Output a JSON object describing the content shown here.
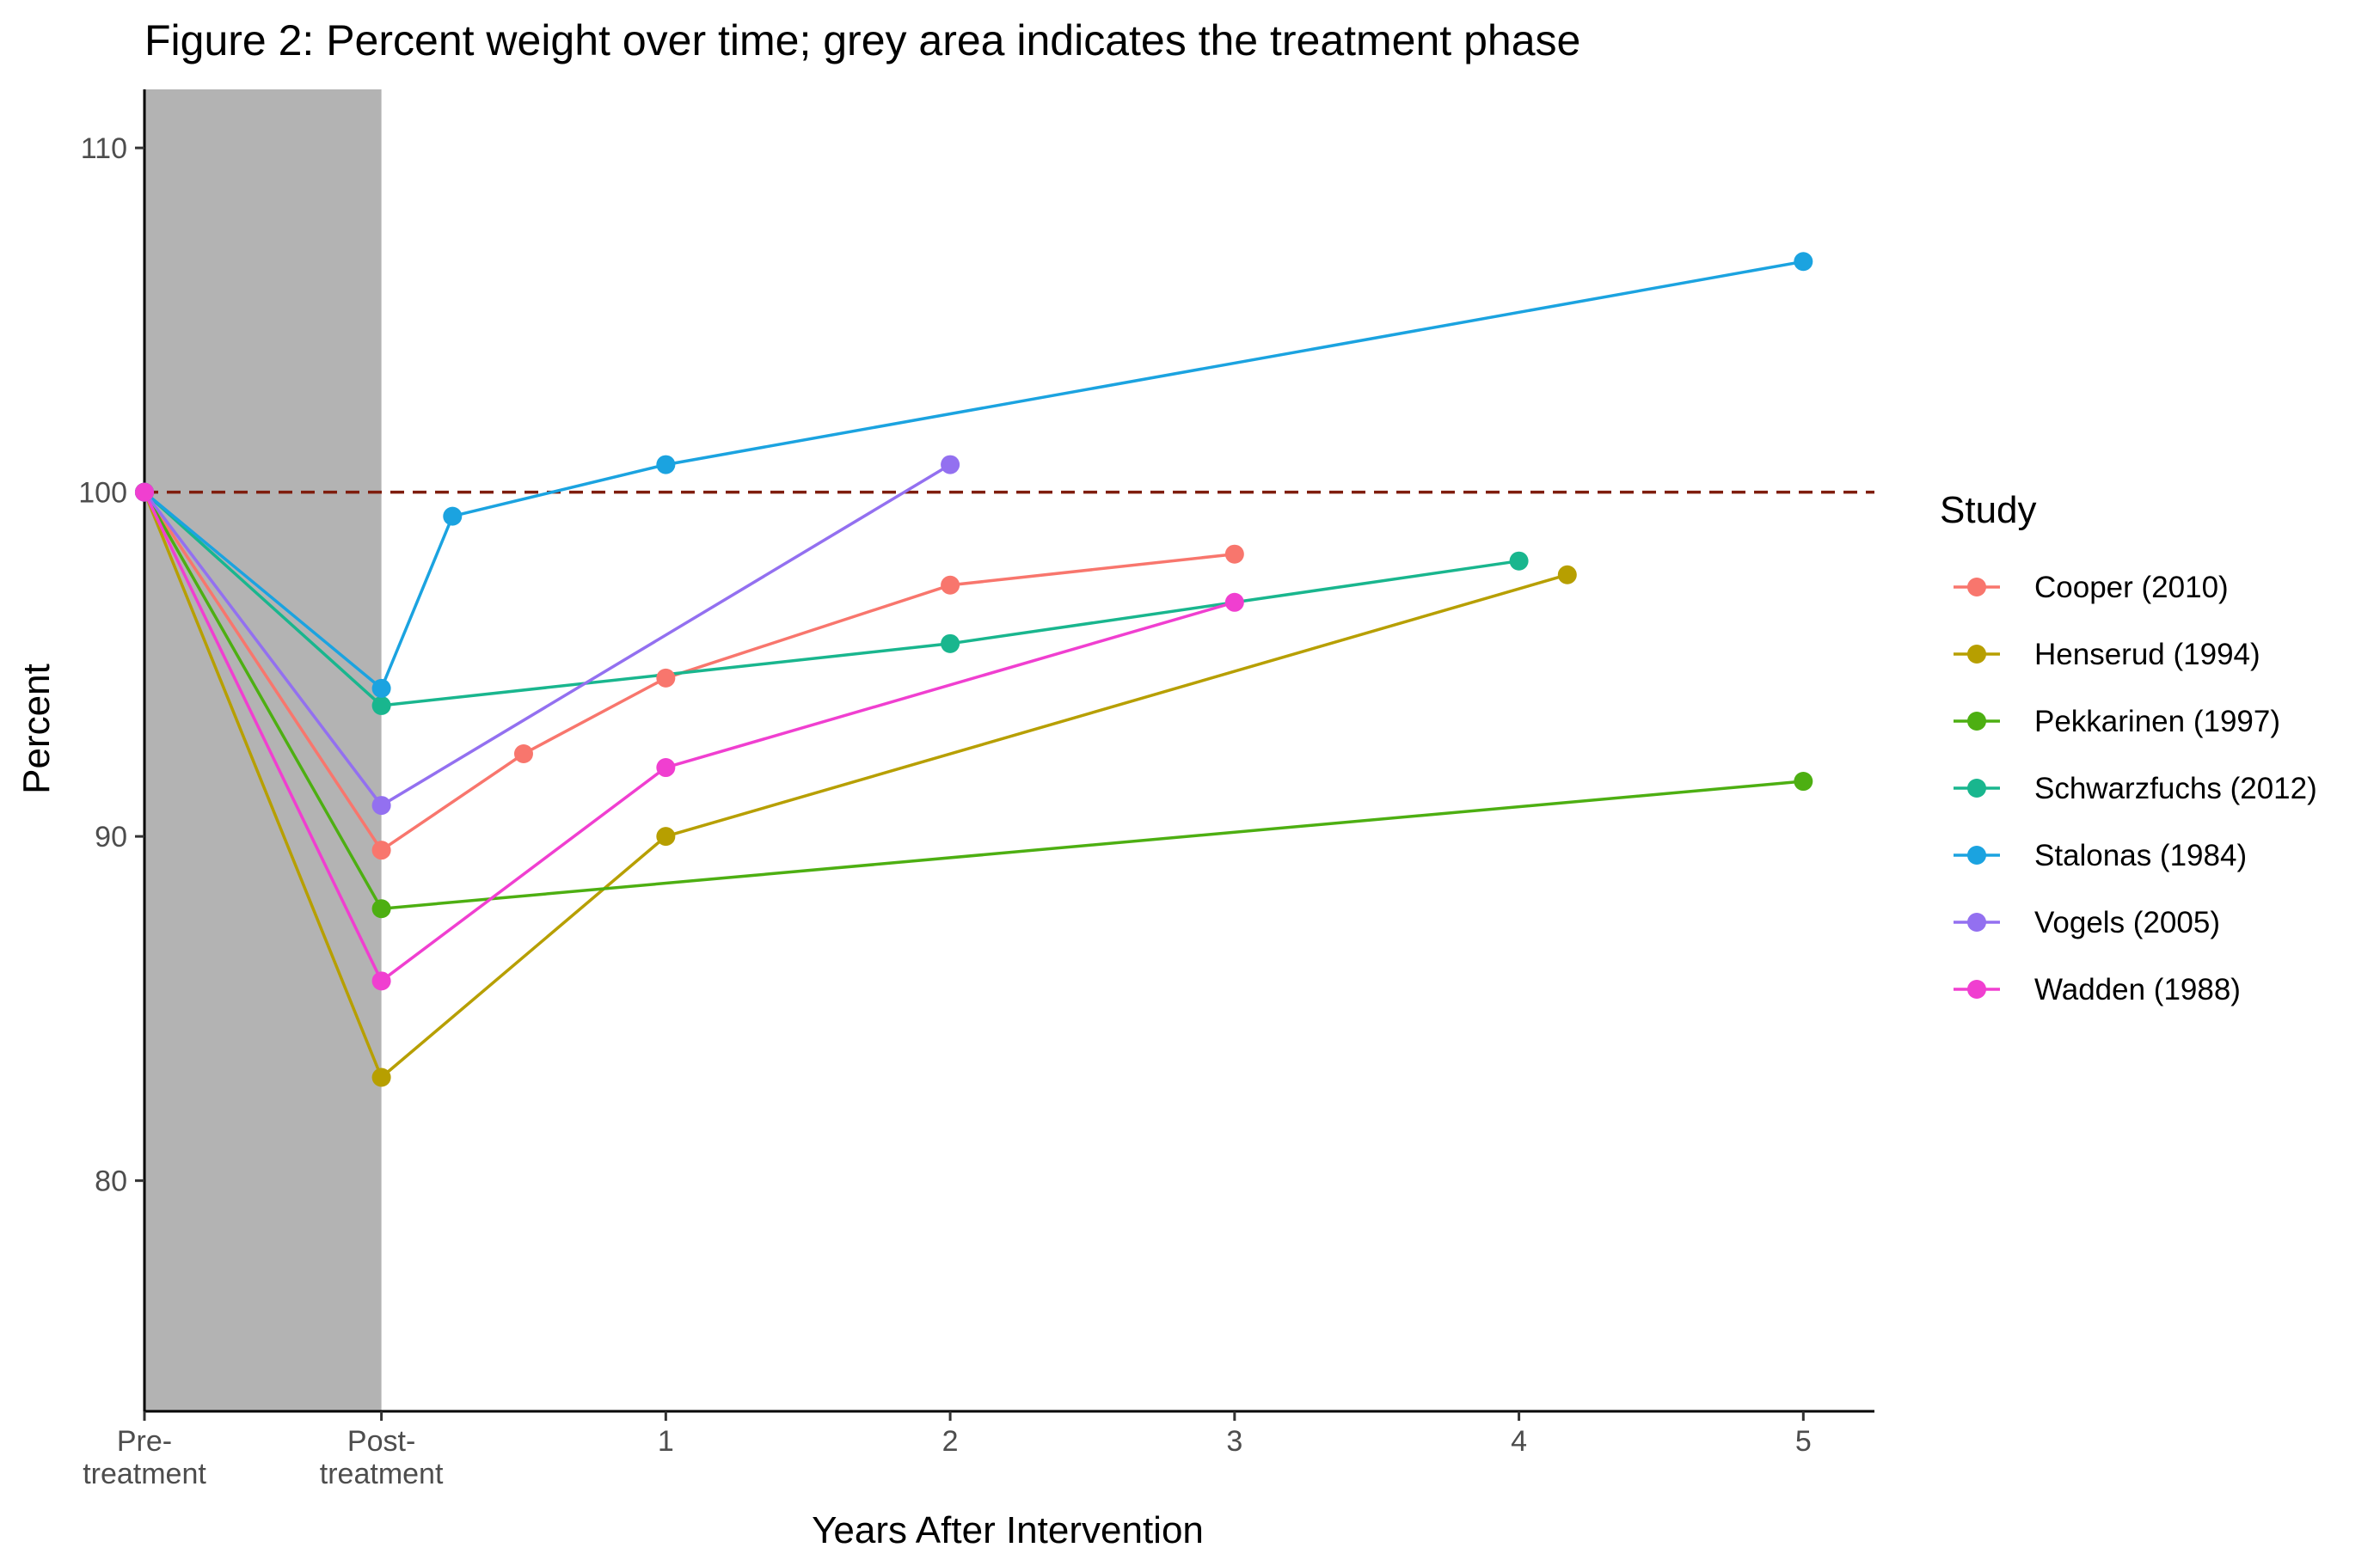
{
  "chart_data": {
    "type": "line",
    "title": "Figure 2: Percent weight over time; grey area indicates the treatment phase",
    "xlabel": "Years After Intervention",
    "ylabel": "Percent",
    "xlim": [
      -0.8333,
      5.25
    ],
    "ylim": [
      73.3,
      111.7
    ],
    "x_ticks": [
      {
        "value": -0.8333,
        "lines": [
          "Pre-",
          "treatment"
        ]
      },
      {
        "value": 0,
        "lines": [
          "Post-",
          "treatment"
        ]
      },
      {
        "value": 1,
        "lines": [
          "1"
        ]
      },
      {
        "value": 2,
        "lines": [
          "2"
        ]
      },
      {
        "value": 3,
        "lines": [
          "3"
        ]
      },
      {
        "value": 4,
        "lines": [
          "4"
        ]
      },
      {
        "value": 5,
        "lines": [
          "5"
        ]
      }
    ],
    "y_ticks": [
      80,
      90,
      100,
      110
    ],
    "shaded_region": {
      "x": [
        -0.8333,
        0
      ],
      "color": "#b3b3b3"
    },
    "reference_line": {
      "y": 100,
      "color": "#7f1d0d",
      "style": "dashed"
    },
    "grid": false,
    "legend": {
      "title": "Study",
      "position": "right"
    },
    "series": [
      {
        "name": "Cooper (2010)",
        "color": "#F8766D",
        "x": [
          -0.8333,
          0,
          0.5,
          1,
          2,
          3
        ],
        "y": [
          100,
          89.6,
          92.4,
          94.6,
          97.3,
          98.2
        ]
      },
      {
        "name": "Henserud (1994)",
        "color": "#B79F00",
        "x": [
          -0.8333,
          0,
          1,
          4.17
        ],
        "y": [
          100,
          83,
          90,
          97.6
        ]
      },
      {
        "name": "Pekkarinen (1997)",
        "color": "#4DAF12",
        "x": [
          -0.8333,
          0,
          5
        ],
        "y": [
          100,
          87.9,
          91.6
        ]
      },
      {
        "name": "Schwarzfuchs (2012)",
        "color": "#19B68E",
        "x": [
          -0.8333,
          0,
          2,
          4
        ],
        "y": [
          100,
          93.8,
          95.6,
          98
        ]
      },
      {
        "name": "Stalonas (1984)",
        "color": "#1BA3E0",
        "x": [
          -0.8333,
          0,
          0.25,
          1,
          5
        ],
        "y": [
          100,
          94.3,
          99.3,
          100.8,
          106.7
        ]
      },
      {
        "name": "Vogels (2005)",
        "color": "#9370F0",
        "x": [
          -0.8333,
          0,
          2
        ],
        "y": [
          100,
          90.9,
          100.8
        ]
      },
      {
        "name": "Wadden (1988)",
        "color": "#F03FD0",
        "x": [
          -0.8333,
          0,
          1,
          3
        ],
        "y": [
          100,
          85.8,
          92,
          96.8
        ]
      }
    ]
  }
}
